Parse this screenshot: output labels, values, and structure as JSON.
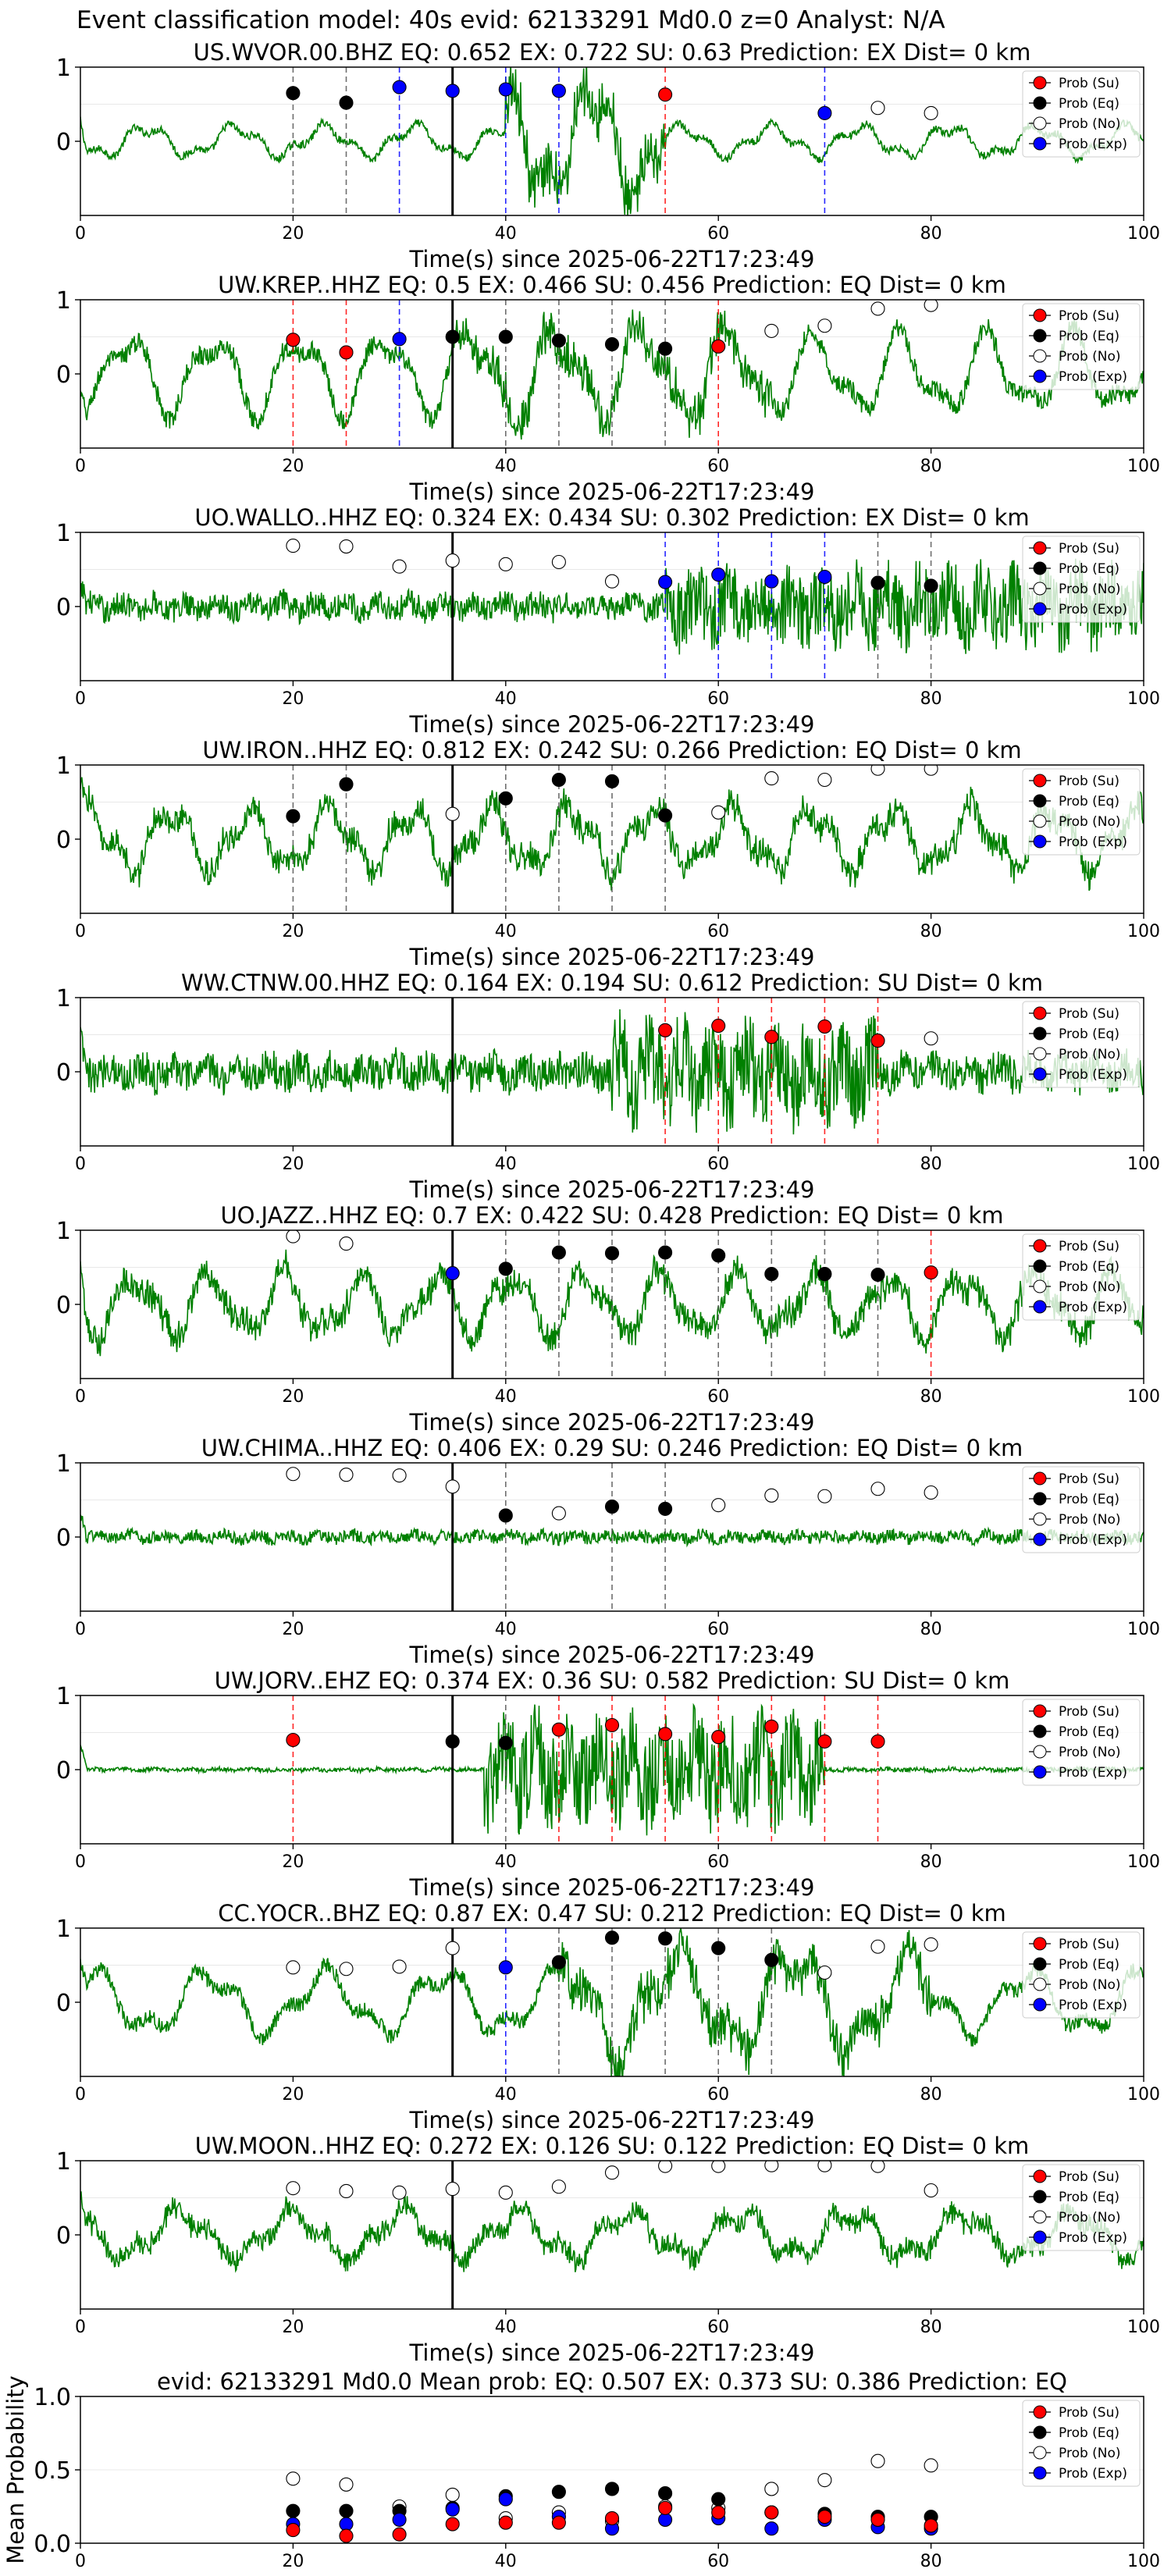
{
  "suptitle": "Event classification model: 40s evid: 62133291 Md0.0 z=0 Analyst: N/A",
  "colors": {
    "trace": "#008000",
    "su": "#ff0000",
    "eq": "#000000",
    "no": "#ffffff",
    "exp": "#0000ff",
    "origin_line": "#000000"
  },
  "legend_labels": [
    "Prob (Su)",
    "Prob (Eq)",
    "Prob (No)",
    "Prob (Exp)"
  ],
  "chart_data": [
    {
      "type": "line",
      "title": "US.WVOR.00.BHZ   EQ: 0.652  EX: 0.722  SU: 0.63   Prediction: EX    Dist= 0 km",
      "xlabel": "Time(s) since 2025-06-22T17:23:49",
      "xlim": [
        0,
        100
      ],
      "ylim": [
        -1,
        1
      ],
      "xticks": [
        0,
        20,
        40,
        60,
        80,
        100
      ],
      "yticks": [
        0,
        1
      ],
      "legend_position": "top-right",
      "origin_time": 35,
      "trace": {
        "style": "lowfreq",
        "burst_start": 40,
        "burst_end": 55,
        "base_amp": 0.3,
        "burst_amp": 1.1
      },
      "points": [
        {
          "x": 20,
          "y": 0.65,
          "cls": "eq"
        },
        {
          "x": 25,
          "y": 0.52,
          "cls": "eq"
        },
        {
          "x": 30,
          "y": 0.73,
          "cls": "exp"
        },
        {
          "x": 35,
          "y": 0.68,
          "cls": "exp"
        },
        {
          "x": 40,
          "y": 0.7,
          "cls": "exp"
        },
        {
          "x": 45,
          "y": 0.68,
          "cls": "exp"
        },
        {
          "x": 55,
          "y": 0.63,
          "cls": "su"
        },
        {
          "x": 70,
          "y": 0.38,
          "cls": "exp"
        },
        {
          "x": 75,
          "y": 0.45,
          "cls": "no"
        },
        {
          "x": 80,
          "y": 0.38,
          "cls": "no"
        }
      ]
    },
    {
      "type": "line",
      "title": "UW.KREP..HHZ   EQ: 0.5  EX: 0.466  SU: 0.456   Prediction: EQ    Dist= 0 km",
      "xlabel": "Time(s) since 2025-06-22T17:23:49",
      "xlim": [
        0,
        100
      ],
      "ylim": [
        -1,
        1
      ],
      "xticks": [
        0,
        20,
        40,
        60,
        80,
        100
      ],
      "yticks": [
        0,
        1
      ],
      "legend_position": "top-right",
      "origin_time": 35,
      "trace": {
        "style": "lowfreq",
        "burst_start": 35,
        "burst_end": 65,
        "base_amp": 0.75,
        "burst_amp": 0.9
      },
      "points": [
        {
          "x": 20,
          "y": 0.46,
          "cls": "su"
        },
        {
          "x": 25,
          "y": 0.29,
          "cls": "su"
        },
        {
          "x": 30,
          "y": 0.47,
          "cls": "exp"
        },
        {
          "x": 35,
          "y": 0.5,
          "cls": "eq"
        },
        {
          "x": 40,
          "y": 0.5,
          "cls": "eq"
        },
        {
          "x": 45,
          "y": 0.45,
          "cls": "eq"
        },
        {
          "x": 50,
          "y": 0.4,
          "cls": "eq"
        },
        {
          "x": 55,
          "y": 0.34,
          "cls": "eq"
        },
        {
          "x": 60,
          "y": 0.37,
          "cls": "su"
        },
        {
          "x": 65,
          "y": 0.58,
          "cls": "no"
        },
        {
          "x": 70,
          "y": 0.65,
          "cls": "no"
        },
        {
          "x": 75,
          "y": 0.88,
          "cls": "no"
        },
        {
          "x": 80,
          "y": 0.93,
          "cls": "no"
        }
      ]
    },
    {
      "type": "line",
      "title": "UO.WALLO..HHZ   EQ: 0.324  EX: 0.434  SU: 0.302   Prediction: EX    Dist= 0 km",
      "xlabel": "Time(s) since 2025-06-22T17:23:49",
      "xlim": [
        0,
        100
      ],
      "ylim": [
        -1,
        1
      ],
      "xticks": [
        0,
        20,
        40,
        60,
        80,
        100
      ],
      "yticks": [
        0,
        1
      ],
      "legend_position": "top-right",
      "origin_time": 35,
      "trace": {
        "style": "noisy",
        "burst_start": 55,
        "burst_end": 100,
        "base_amp": 0.25,
        "burst_amp": 0.7
      },
      "points": [
        {
          "x": 20,
          "y": 0.82,
          "cls": "no"
        },
        {
          "x": 25,
          "y": 0.81,
          "cls": "no"
        },
        {
          "x": 30,
          "y": 0.54,
          "cls": "no"
        },
        {
          "x": 35,
          "y": 0.62,
          "cls": "no"
        },
        {
          "x": 40,
          "y": 0.57,
          "cls": "no"
        },
        {
          "x": 45,
          "y": 0.6,
          "cls": "no"
        },
        {
          "x": 50,
          "y": 0.34,
          "cls": "no"
        },
        {
          "x": 55,
          "y": 0.33,
          "cls": "exp"
        },
        {
          "x": 60,
          "y": 0.43,
          "cls": "exp"
        },
        {
          "x": 65,
          "y": 0.34,
          "cls": "exp"
        },
        {
          "x": 70,
          "y": 0.4,
          "cls": "exp"
        },
        {
          "x": 75,
          "y": 0.32,
          "cls": "eq"
        },
        {
          "x": 80,
          "y": 0.28,
          "cls": "eq"
        }
      ]
    },
    {
      "type": "line",
      "title": "UW.IRON..HHZ   EQ: 0.812  EX: 0.242  SU: 0.266   Prediction: EQ    Dist= 0 km",
      "xlabel": "Time(s) since 2025-06-22T17:23:49",
      "xlim": [
        0,
        100
      ],
      "ylim": [
        -1,
        1
      ],
      "xticks": [
        0,
        20,
        40,
        60,
        80,
        100
      ],
      "yticks": [
        0,
        1
      ],
      "legend_position": "top-right",
      "origin_time": 35,
      "trace": {
        "style": "lowfreq",
        "burst_start": 0,
        "burst_end": 100,
        "base_amp": 0.6,
        "burst_amp": 0.6
      },
      "points": [
        {
          "x": 20,
          "y": 0.31,
          "cls": "eq"
        },
        {
          "x": 25,
          "y": 0.74,
          "cls": "eq"
        },
        {
          "x": 35,
          "y": 0.34,
          "cls": "no"
        },
        {
          "x": 40,
          "y": 0.55,
          "cls": "eq"
        },
        {
          "x": 45,
          "y": 0.8,
          "cls": "eq"
        },
        {
          "x": 50,
          "y": 0.78,
          "cls": "eq"
        },
        {
          "x": 55,
          "y": 0.32,
          "cls": "eq"
        },
        {
          "x": 60,
          "y": 0.36,
          "cls": "no"
        },
        {
          "x": 65,
          "y": 0.82,
          "cls": "no"
        },
        {
          "x": 70,
          "y": 0.8,
          "cls": "no"
        },
        {
          "x": 75,
          "y": 0.95,
          "cls": "no"
        },
        {
          "x": 80,
          "y": 0.95,
          "cls": "no"
        }
      ]
    },
    {
      "type": "line",
      "title": "WW.CTNW.00.HHZ   EQ: 0.164  EX: 0.194  SU: 0.612   Prediction: SU    Dist= 0 km",
      "xlabel": "Time(s) since 2025-06-22T17:23:49",
      "xlim": [
        0,
        100
      ],
      "ylim": [
        -1,
        1
      ],
      "xticks": [
        0,
        20,
        40,
        60,
        80,
        100
      ],
      "yticks": [
        0,
        1
      ],
      "legend_position": "top-right",
      "origin_time": 35,
      "trace": {
        "style": "noisy",
        "burst_start": 50,
        "burst_end": 75,
        "base_amp": 0.35,
        "burst_amp": 0.9
      },
      "points": [
        {
          "x": 55,
          "y": 0.56,
          "cls": "su"
        },
        {
          "x": 60,
          "y": 0.62,
          "cls": "su"
        },
        {
          "x": 65,
          "y": 0.47,
          "cls": "su"
        },
        {
          "x": 70,
          "y": 0.61,
          "cls": "su"
        },
        {
          "x": 75,
          "y": 0.42,
          "cls": "su"
        },
        {
          "x": 80,
          "y": 0.45,
          "cls": "no"
        }
      ]
    },
    {
      "type": "line",
      "title": "UO.JAZZ..HHZ   EQ: 0.7  EX: 0.422  SU: 0.428   Prediction: EQ    Dist= 0 km",
      "xlabel": "Time(s) since 2025-06-22T17:23:49",
      "xlim": [
        0,
        100
      ],
      "ylim": [
        -1,
        1
      ],
      "xticks": [
        0,
        20,
        40,
        60,
        80,
        100
      ],
      "yticks": [
        0,
        1
      ],
      "legend_position": "top-right",
      "origin_time": 35,
      "trace": {
        "style": "lowfreq",
        "burst_start": 0,
        "burst_end": 100,
        "base_amp": 0.6,
        "burst_amp": 0.6
      },
      "points": [
        {
          "x": 20,
          "y": 0.92,
          "cls": "no"
        },
        {
          "x": 25,
          "y": 0.82,
          "cls": "no"
        },
        {
          "x": 35,
          "y": 0.42,
          "cls": "exp"
        },
        {
          "x": 40,
          "y": 0.48,
          "cls": "eq"
        },
        {
          "x": 45,
          "y": 0.7,
          "cls": "eq"
        },
        {
          "x": 50,
          "y": 0.69,
          "cls": "eq"
        },
        {
          "x": 55,
          "y": 0.7,
          "cls": "eq"
        },
        {
          "x": 60,
          "y": 0.66,
          "cls": "eq"
        },
        {
          "x": 65,
          "y": 0.41,
          "cls": "eq"
        },
        {
          "x": 70,
          "y": 0.41,
          "cls": "eq"
        },
        {
          "x": 75,
          "y": 0.4,
          "cls": "eq"
        },
        {
          "x": 80,
          "y": 0.43,
          "cls": "su"
        }
      ]
    },
    {
      "type": "line",
      "title": "UW.CHIMA..HHZ   EQ: 0.406  EX: 0.29  SU: 0.246   Prediction: EQ    Dist= 0 km",
      "xlabel": "Time(s) since 2025-06-22T17:23:49",
      "xlim": [
        0,
        100
      ],
      "ylim": [
        -1,
        1
      ],
      "xticks": [
        0,
        20,
        40,
        60,
        80,
        100
      ],
      "yticks": [
        0,
        1
      ],
      "legend_position": "top-right",
      "origin_time": 35,
      "trace": {
        "style": "noisy",
        "burst_start": 0,
        "burst_end": 100,
        "base_amp": 0.12,
        "burst_amp": 0.12
      },
      "points": [
        {
          "x": 20,
          "y": 0.85,
          "cls": "no"
        },
        {
          "x": 25,
          "y": 0.84,
          "cls": "no"
        },
        {
          "x": 30,
          "y": 0.83,
          "cls": "no"
        },
        {
          "x": 35,
          "y": 0.68,
          "cls": "no"
        },
        {
          "x": 40,
          "y": 0.29,
          "cls": "eq"
        },
        {
          "x": 45,
          "y": 0.32,
          "cls": "no"
        },
        {
          "x": 50,
          "y": 0.41,
          "cls": "eq"
        },
        {
          "x": 55,
          "y": 0.38,
          "cls": "eq"
        },
        {
          "x": 60,
          "y": 0.43,
          "cls": "no"
        },
        {
          "x": 65,
          "y": 0.56,
          "cls": "no"
        },
        {
          "x": 70,
          "y": 0.55,
          "cls": "no"
        },
        {
          "x": 75,
          "y": 0.65,
          "cls": "no"
        },
        {
          "x": 80,
          "y": 0.6,
          "cls": "no"
        }
      ]
    },
    {
      "type": "line",
      "title": "UW.JORV..EHZ   EQ: 0.374  EX: 0.36  SU: 0.582   Prediction: SU    Dist= 0 km",
      "xlabel": "Time(s) since 2025-06-22T17:23:49",
      "xlim": [
        0,
        100
      ],
      "ylim": [
        -1,
        1
      ],
      "xticks": [
        0,
        20,
        40,
        60,
        80,
        100
      ],
      "yticks": [
        0,
        1
      ],
      "legend_position": "top-right",
      "origin_time": 35,
      "trace": {
        "style": "noisy",
        "burst_start": 38,
        "burst_end": 70,
        "base_amp": 0.04,
        "burst_amp": 0.95
      },
      "points": [
        {
          "x": 20,
          "y": 0.4,
          "cls": "su"
        },
        {
          "x": 35,
          "y": 0.38,
          "cls": "eq"
        },
        {
          "x": 40,
          "y": 0.36,
          "cls": "eq"
        },
        {
          "x": 45,
          "y": 0.54,
          "cls": "su"
        },
        {
          "x": 50,
          "y": 0.6,
          "cls": "su"
        },
        {
          "x": 55,
          "y": 0.48,
          "cls": "su"
        },
        {
          "x": 60,
          "y": 0.44,
          "cls": "su"
        },
        {
          "x": 65,
          "y": 0.58,
          "cls": "su"
        },
        {
          "x": 70,
          "y": 0.38,
          "cls": "su"
        },
        {
          "x": 75,
          "y": 0.38,
          "cls": "su"
        }
      ]
    },
    {
      "type": "line",
      "title": "CC.YOCR..BHZ   EQ: 0.87  EX: 0.47  SU: 0.212   Prediction: EQ    Dist= 0 km",
      "xlabel": "Time(s) since 2025-06-22T17:23:49",
      "xlim": [
        0,
        100
      ],
      "ylim": [
        -1,
        1
      ],
      "xticks": [
        0,
        20,
        40,
        60,
        80,
        100
      ],
      "yticks": [
        0,
        1
      ],
      "legend_position": "top-right",
      "origin_time": 35,
      "trace": {
        "style": "lowfreq",
        "burst_start": 45,
        "burst_end": 80,
        "base_amp": 0.6,
        "burst_amp": 0.95
      },
      "points": [
        {
          "x": 20,
          "y": 0.47,
          "cls": "no"
        },
        {
          "x": 25,
          "y": 0.45,
          "cls": "no"
        },
        {
          "x": 30,
          "y": 0.48,
          "cls": "no"
        },
        {
          "x": 35,
          "y": 0.73,
          "cls": "no"
        },
        {
          "x": 40,
          "y": 0.47,
          "cls": "exp"
        },
        {
          "x": 45,
          "y": 0.54,
          "cls": "eq"
        },
        {
          "x": 50,
          "y": 0.87,
          "cls": "eq"
        },
        {
          "x": 55,
          "y": 0.86,
          "cls": "eq"
        },
        {
          "x": 60,
          "y": 0.73,
          "cls": "eq"
        },
        {
          "x": 65,
          "y": 0.57,
          "cls": "eq"
        },
        {
          "x": 70,
          "y": 0.4,
          "cls": "no"
        },
        {
          "x": 75,
          "y": 0.75,
          "cls": "no"
        },
        {
          "x": 80,
          "y": 0.78,
          "cls": "no"
        }
      ]
    },
    {
      "type": "line",
      "title": "UW.MOON..HHZ   EQ: 0.272  EX: 0.126  SU: 0.122   Prediction: EQ    Dist= 0 km",
      "xlabel": "Time(s) since 2025-06-22T17:23:49",
      "xlim": [
        0,
        100
      ],
      "ylim": [
        -1,
        1
      ],
      "xticks": [
        0,
        20,
        40,
        60,
        80,
        100
      ],
      "yticks": [
        0,
        1
      ],
      "legend_position": "top-right",
      "origin_time": 35,
      "trace": {
        "style": "lowfreq",
        "burst_start": 0,
        "burst_end": 100,
        "base_amp": 0.45,
        "burst_amp": 0.45
      },
      "points": [
        {
          "x": 20,
          "y": 0.63,
          "cls": "no"
        },
        {
          "x": 25,
          "y": 0.59,
          "cls": "no"
        },
        {
          "x": 30,
          "y": 0.57,
          "cls": "no"
        },
        {
          "x": 35,
          "y": 0.62,
          "cls": "no"
        },
        {
          "x": 40,
          "y": 0.57,
          "cls": "no"
        },
        {
          "x": 45,
          "y": 0.65,
          "cls": "no"
        },
        {
          "x": 50,
          "y": 0.84,
          "cls": "no"
        },
        {
          "x": 55,
          "y": 0.93,
          "cls": "no"
        },
        {
          "x": 60,
          "y": 0.93,
          "cls": "no"
        },
        {
          "x": 65,
          "y": 0.94,
          "cls": "no"
        },
        {
          "x": 70,
          "y": 0.94,
          "cls": "no"
        },
        {
          "x": 75,
          "y": 0.93,
          "cls": "no"
        },
        {
          "x": 80,
          "y": 0.6,
          "cls": "no"
        }
      ]
    },
    {
      "type": "scatter",
      "title": "evid: 62133291   Md0.0   Mean prob:   EQ: 0.507  EX: 0.373  SU: 0.386   Prediction: EQ",
      "ylabel": "Mean Probability",
      "xlim": [
        0,
        100
      ],
      "ylim": [
        0,
        1
      ],
      "xticks": [
        0,
        20,
        40,
        60,
        80,
        100
      ],
      "yticks": [
        0.0,
        0.5,
        1.0
      ],
      "ytick_labels": [
        "0.0",
        "0.5",
        "1.0"
      ],
      "legend_position": "top-right",
      "x": [
        20,
        25,
        30,
        35,
        40,
        45,
        50,
        55,
        60,
        65,
        70,
        75,
        80
      ],
      "series": [
        {
          "cls": "no",
          "values": [
            0.44,
            0.4,
            0.25,
            0.33,
            0.17,
            0.21,
            0.15,
            0.25,
            0.24,
            0.37,
            0.43,
            0.56,
            0.53
          ]
        },
        {
          "cls": "eq",
          "values": [
            0.22,
            0.22,
            0.22,
            0.24,
            0.32,
            0.35,
            0.37,
            0.34,
            0.3,
            0.21,
            0.2,
            0.18,
            0.18
          ]
        },
        {
          "cls": "exp",
          "values": [
            0.13,
            0.13,
            0.16,
            0.23,
            0.3,
            0.18,
            0.1,
            0.16,
            0.17,
            0.1,
            0.16,
            0.11,
            0.1
          ]
        },
        {
          "cls": "su",
          "values": [
            0.09,
            0.05,
            0.06,
            0.13,
            0.14,
            0.14,
            0.17,
            0.24,
            0.21,
            0.21,
            0.18,
            0.16,
            0.12
          ]
        }
      ]
    }
  ]
}
